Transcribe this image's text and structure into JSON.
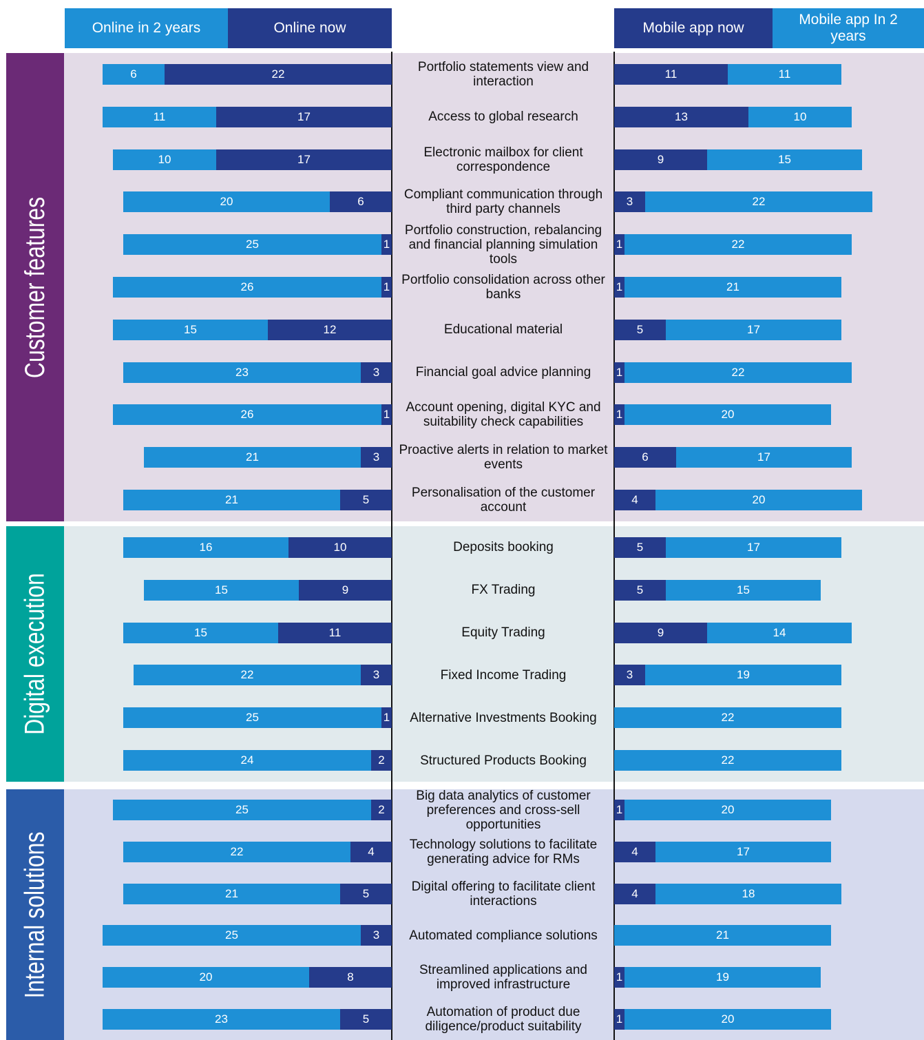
{
  "chart_data": {
    "type": "butterfly-stacked-bar",
    "groups": [
      {
        "name": "Customer features",
        "color": "#6b2a76",
        "background": "#e3dbe7",
        "categories": [
          "Portfolio statements view and interaction",
          "Access to global research",
          "Electronic mailbox for client correspondence",
          "Compliant communication through third party channels",
          "Portfolio construction, rebalancing and financial planning simulation tools",
          "Portfolio consolidation across other banks",
          "Educational material",
          "Financial goal advice planning",
          "Account opening, digital KYC and suitability check capabilities",
          "Proactive alerts in relation to market events",
          "Personalisation of the customer account"
        ]
      },
      {
        "name": "Digital execution",
        "color": "#00a39b",
        "background": "#e1eaed",
        "categories": [
          "Deposits booking",
          "FX Trading",
          "Equity Trading",
          "Fixed Income Trading",
          "Alternative Investments Booking",
          "Structured Products Booking"
        ]
      },
      {
        "name": "Internal solutions",
        "color": "#2b5ca9",
        "background": "#d6daee",
        "categories": [
          "Big data analytics of customer preferences and cross-sell opportunities",
          "Technology solutions to facilitate generating advice for RMs",
          "Digital offering to facilitate client interactions",
          "Automated compliance solutions",
          "Streamlined applications and improved infrastructure",
          "Automation of product due diligence/product suitability"
        ]
      }
    ],
    "series": [
      {
        "name": "Online in 2 years",
        "side": "left",
        "color": "#1e90d6",
        "values": [
          6,
          11,
          10,
          20,
          25,
          26,
          15,
          23,
          26,
          21,
          21,
          16,
          15,
          15,
          22,
          25,
          24,
          25,
          22,
          21,
          25,
          20,
          23
        ]
      },
      {
        "name": "Online now",
        "side": "left",
        "color": "#253b8b",
        "values": [
          22,
          17,
          17,
          6,
          1,
          1,
          12,
          3,
          1,
          3,
          5,
          10,
          9,
          11,
          3,
          1,
          2,
          2,
          4,
          5,
          3,
          8,
          5
        ]
      },
      {
        "name": "Mobile app now",
        "side": "right",
        "color": "#253b8b",
        "values": [
          11,
          13,
          9,
          3,
          1,
          1,
          5,
          1,
          1,
          6,
          4,
          5,
          5,
          9,
          3,
          null,
          null,
          1,
          4,
          4,
          null,
          1,
          1
        ]
      },
      {
        "name": "Mobile app In 2 years",
        "side": "right",
        "color": "#1e90d6",
        "values": [
          11,
          10,
          15,
          22,
          22,
          21,
          17,
          22,
          20,
          17,
          20,
          17,
          15,
          14,
          19,
          22,
          22,
          20,
          17,
          18,
          21,
          19,
          20
        ]
      }
    ]
  }
}
